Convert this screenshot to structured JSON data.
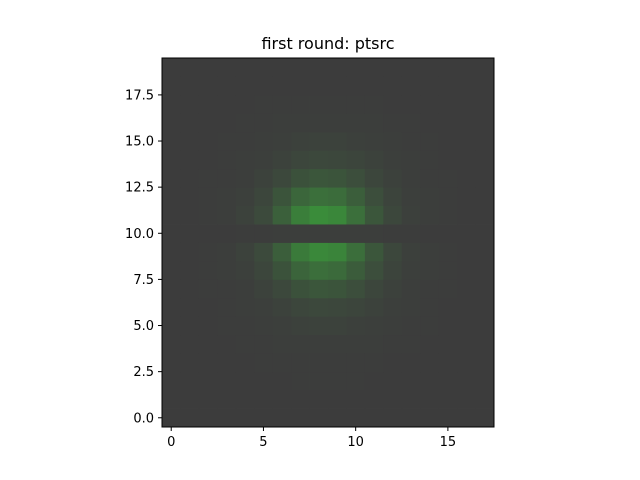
{
  "chart_data": {
    "type": "heatmap",
    "title": "first round: ptsrc",
    "xlabel": "",
    "ylabel": "",
    "xlim": [
      -0.5,
      17.5
    ],
    "ylim": [
      -0.5,
      19.5
    ],
    "x_ticks": [
      0,
      5,
      10,
      15
    ],
    "x_tick_labels": [
      "0",
      "5",
      "10",
      "15"
    ],
    "y_ticks": [
      0.0,
      2.5,
      5.0,
      7.5,
      10.0,
      12.5,
      15.0,
      17.5
    ],
    "y_tick_labels": [
      "0.0",
      "2.5",
      "5.0",
      "7.5",
      "10.0",
      "12.5",
      "15.0",
      "17.5"
    ],
    "grid": false,
    "origin": "lower",
    "colors": {
      "background": "#3c3c3c",
      "peak": "#3a8c3a"
    },
    "n_cols": 18,
    "n_rows": 20,
    "value_range": [
      0,
      1
    ],
    "values_description_free": true,
    "values": [
      [
        0.0,
        0.0,
        0.0,
        0.0,
        0.0,
        0.0,
        0.0,
        0.0,
        0.0,
        0.0,
        0.0,
        0.0,
        0.0,
        0.0,
        0.0,
        0.0,
        0.0,
        0.0
      ],
      [
        0.0,
        0.0,
        0.0,
        0.0,
        0.0,
        0.0,
        0.0,
        0.0,
        0.0,
        0.0,
        0.0,
        0.0,
        0.0,
        0.0,
        0.0,
        0.0,
        0.0,
        0.0
      ],
      [
        0.0,
        0.0,
        0.0,
        0.0,
        0.0,
        0.0,
        0.0,
        0.01,
        0.01,
        0.01,
        0.01,
        0.0,
        0.0,
        0.0,
        0.0,
        0.0,
        0.0,
        0.0
      ],
      [
        0.0,
        0.0,
        0.0,
        0.0,
        0.0,
        0.01,
        0.01,
        0.01,
        0.01,
        0.01,
        0.01,
        0.01,
        0.0,
        0.0,
        0.0,
        0.0,
        0.0,
        0.0
      ],
      [
        0.0,
        0.0,
        0.0,
        0.0,
        0.01,
        0.01,
        0.02,
        0.03,
        0.03,
        0.03,
        0.02,
        0.02,
        0.01,
        0.01,
        0.0,
        0.0,
        0.0,
        0.0
      ],
      [
        0.0,
        0.0,
        0.0,
        0.01,
        0.01,
        0.02,
        0.04,
        0.06,
        0.07,
        0.07,
        0.05,
        0.04,
        0.02,
        0.01,
        0.01,
        0.0,
        0.0,
        0.0
      ],
      [
        0.0,
        0.0,
        0.0,
        0.01,
        0.02,
        0.04,
        0.08,
        0.12,
        0.15,
        0.14,
        0.11,
        0.07,
        0.04,
        0.02,
        0.01,
        0.0,
        0.0,
        0.0
      ],
      [
        0.0,
        0.0,
        0.01,
        0.01,
        0.03,
        0.07,
        0.15,
        0.26,
        0.32,
        0.3,
        0.22,
        0.13,
        0.06,
        0.03,
        0.01,
        0.01,
        0.0,
        0.0
      ],
      [
        0.0,
        0.0,
        0.01,
        0.02,
        0.05,
        0.12,
        0.28,
        0.5,
        0.62,
        0.58,
        0.4,
        0.22,
        0.1,
        0.04,
        0.02,
        0.01,
        0.0,
        0.0
      ],
      [
        0.0,
        0.0,
        0.01,
        0.02,
        0.07,
        0.18,
        0.42,
        0.78,
        0.95,
        0.9,
        0.62,
        0.32,
        0.14,
        0.05,
        0.02,
        0.01,
        0.0,
        0.0
      ],
      [
        0.0,
        0.0,
        0.0,
        0.0,
        0.01,
        0.01,
        0.02,
        0.02,
        0.03,
        0.03,
        0.02,
        0.02,
        0.01,
        0.01,
        0.0,
        0.0,
        0.0,
        0.0
      ],
      [
        0.0,
        0.0,
        0.01,
        0.02,
        0.07,
        0.18,
        0.45,
        0.82,
        1.0,
        0.94,
        0.64,
        0.33,
        0.14,
        0.05,
        0.02,
        0.01,
        0.0,
        0.0
      ],
      [
        0.0,
        0.0,
        0.01,
        0.02,
        0.05,
        0.13,
        0.3,
        0.52,
        0.64,
        0.6,
        0.42,
        0.23,
        0.1,
        0.04,
        0.02,
        0.01,
        0.0,
        0.0
      ],
      [
        0.0,
        0.0,
        0.01,
        0.01,
        0.03,
        0.07,
        0.15,
        0.26,
        0.32,
        0.3,
        0.22,
        0.13,
        0.06,
        0.03,
        0.01,
        0.01,
        0.0,
        0.0
      ],
      [
        0.0,
        0.0,
        0.0,
        0.01,
        0.02,
        0.04,
        0.08,
        0.12,
        0.15,
        0.14,
        0.11,
        0.07,
        0.04,
        0.02,
        0.01,
        0.0,
        0.0,
        0.0
      ],
      [
        0.0,
        0.0,
        0.0,
        0.01,
        0.01,
        0.02,
        0.04,
        0.06,
        0.07,
        0.07,
        0.05,
        0.04,
        0.02,
        0.01,
        0.01,
        0.0,
        0.0,
        0.0
      ],
      [
        0.0,
        0.0,
        0.0,
        0.0,
        0.01,
        0.01,
        0.02,
        0.03,
        0.03,
        0.03,
        0.02,
        0.02,
        0.01,
        0.01,
        0.0,
        0.0,
        0.0,
        0.0
      ],
      [
        0.0,
        0.0,
        0.0,
        0.0,
        0.0,
        0.01,
        0.01,
        0.01,
        0.01,
        0.01,
        0.01,
        0.01,
        0.0,
        0.0,
        0.0,
        0.0,
        0.0,
        0.0
      ],
      [
        0.0,
        0.0,
        0.0,
        0.0,
        0.0,
        0.0,
        0.0,
        0.0,
        0.0,
        0.0,
        0.0,
        0.0,
        0.0,
        0.0,
        0.0,
        0.0,
        0.0,
        0.0
      ],
      [
        0.0,
        0.0,
        0.0,
        0.0,
        0.0,
        0.0,
        0.0,
        0.0,
        0.0,
        0.0,
        0.0,
        0.0,
        0.0,
        0.0,
        0.0,
        0.0,
        0.0,
        0.0
      ]
    ]
  }
}
